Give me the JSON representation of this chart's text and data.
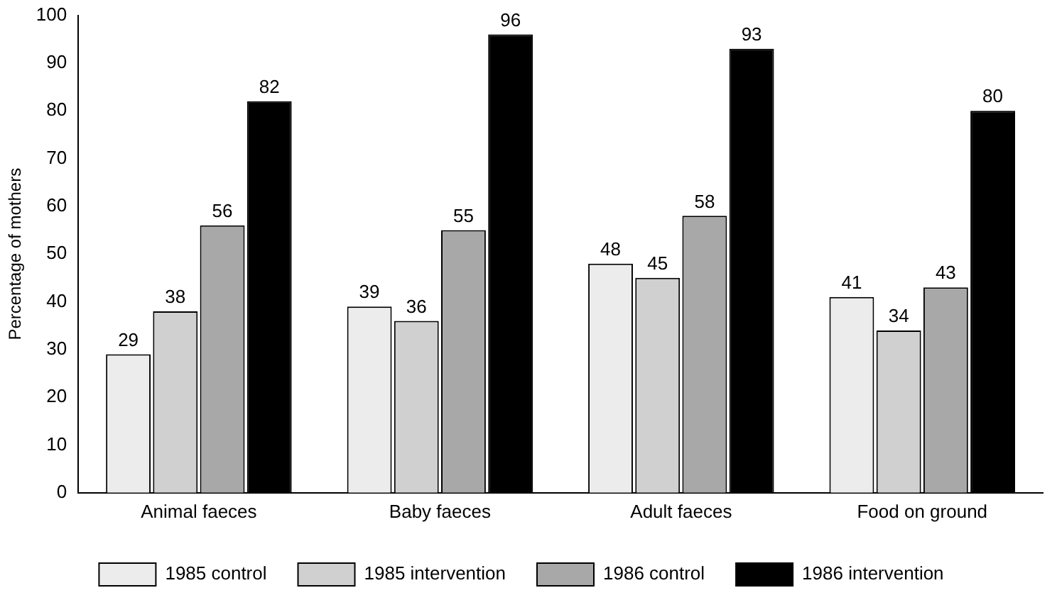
{
  "chart_data": {
    "type": "bar",
    "ylabel": "Percentage of mothers",
    "categories": [
      "Animal faeces",
      "Baby faeces",
      "Adult faeces",
      "Food on ground"
    ],
    "series": [
      {
        "name": "1985 control",
        "color": "#ececec",
        "values": [
          29,
          39,
          48,
          41
        ]
      },
      {
        "name": "1985 intervention",
        "color": "#d0d0d0",
        "values": [
          38,
          36,
          45,
          34
        ]
      },
      {
        "name": "1986 control",
        "color": "#a8a8a8",
        "values": [
          56,
          55,
          58,
          43
        ]
      },
      {
        "name": "1986 intervention",
        "color": "#000000",
        "values": [
          82,
          96,
          93,
          80
        ]
      }
    ],
    "ylim": [
      0,
      100
    ],
    "yticks": [
      0,
      10,
      20,
      30,
      40,
      50,
      60,
      70,
      80,
      90,
      100
    ],
    "grid": false,
    "legend": "bottom",
    "data_labels": true
  }
}
